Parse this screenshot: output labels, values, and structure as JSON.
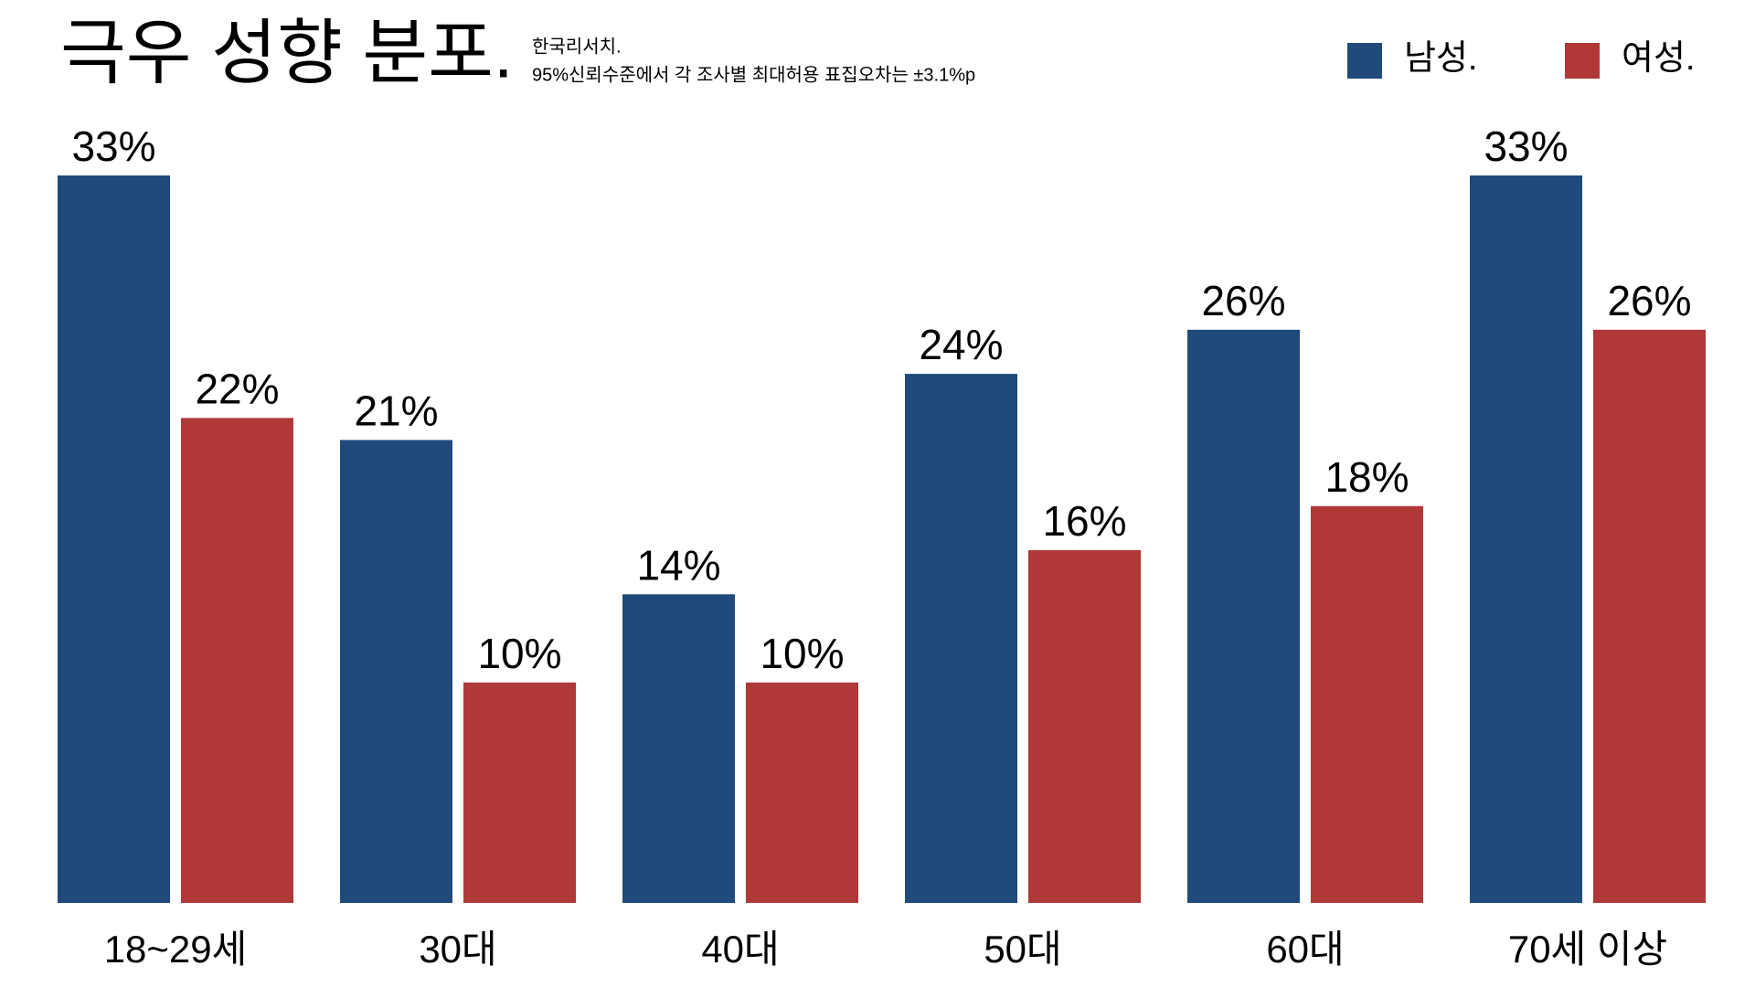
{
  "chart_data": {
    "type": "bar",
    "title": "극우 성향 분포.",
    "subtitle": [
      "한국리서치.",
      "95%신뢰수준에서 각 조사별 최대허용 표집오차는 ±3.1%p"
    ],
    "categories": [
      "18~29세",
      "30대",
      "40대",
      "50대",
      "60대",
      "70세 이상"
    ],
    "series": [
      {
        "name": "남성.",
        "color": "#1f4a7a",
        "values": [
          33,
          21,
          14,
          24,
          26,
          33
        ],
        "value_labels": [
          "33%",
          "21%",
          "14%",
          "24%",
          "26%",
          "33%"
        ]
      },
      {
        "name": "여성.",
        "color": "#b03837",
        "values": [
          22,
          10,
          10,
          16,
          18,
          26
        ],
        "value_labels": [
          "22%",
          "10%",
          "10%",
          "16%",
          "18%",
          "26%"
        ]
      }
    ]
  }
}
